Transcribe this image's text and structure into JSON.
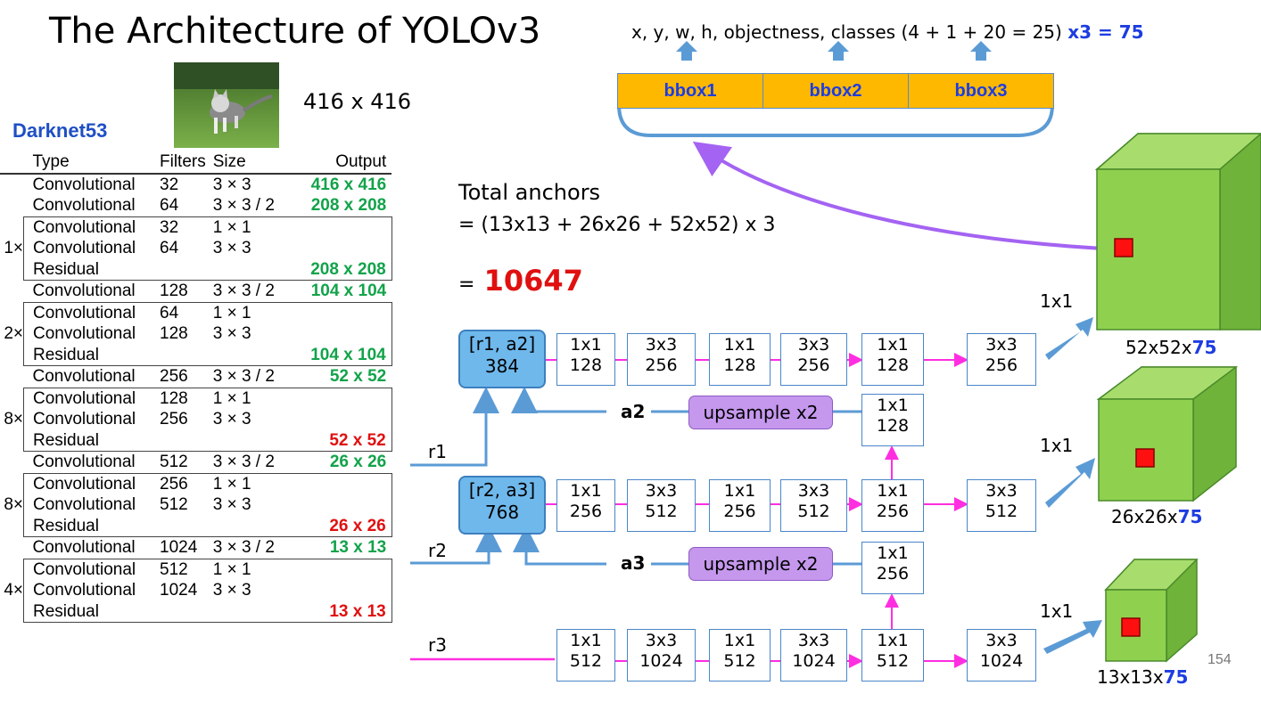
{
  "title": "The Architecture of YOLOv3",
  "input_size": "416 x 416",
  "network_name": "Darknet53",
  "table": {
    "headers": {
      "type": "Type",
      "filters": "Filters",
      "size": "Size",
      "output": "Output"
    },
    "rows": [
      {
        "mult": "",
        "type": "Convolutional",
        "filters": "32",
        "size": "3 × 3",
        "output": "416 x 416",
        "color": "green"
      },
      {
        "mult": "",
        "type": "Convolutional",
        "filters": "64",
        "size": "3 × 3 / 2",
        "output": "208 x 208",
        "color": "green"
      },
      {
        "mult": "",
        "type": "Convolutional",
        "filters": "32",
        "size": "1 × 1",
        "output": "",
        "color": ""
      },
      {
        "mult": "1×",
        "type": "Convolutional",
        "filters": "64",
        "size": "3 × 3",
        "output": "",
        "color": ""
      },
      {
        "mult": "",
        "type": "Residual",
        "filters": "",
        "size": "",
        "output": "208 x 208",
        "color": "green"
      },
      {
        "mult": "",
        "type": "Convolutional",
        "filters": "128",
        "size": "3 × 3 / 2",
        "output": "104 x 104",
        "color": "green"
      },
      {
        "mult": "",
        "type": "Convolutional",
        "filters": "64",
        "size": "1 × 1",
        "output": "",
        "color": ""
      },
      {
        "mult": "2×",
        "type": "Convolutional",
        "filters": "128",
        "size": "3 × 3",
        "output": "",
        "color": ""
      },
      {
        "mult": "",
        "type": "Residual",
        "filters": "",
        "size": "",
        "output": "104 x 104",
        "color": "green"
      },
      {
        "mult": "",
        "type": "Convolutional",
        "filters": "256",
        "size": "3 × 3 / 2",
        "output": "52 x 52",
        "color": "green"
      },
      {
        "mult": "",
        "type": "Convolutional",
        "filters": "128",
        "size": "1 × 1",
        "output": "",
        "color": ""
      },
      {
        "mult": "8×",
        "type": "Convolutional",
        "filters": "256",
        "size": "3 × 3",
        "output": "",
        "color": ""
      },
      {
        "mult": "",
        "type": "Residual",
        "filters": "",
        "size": "",
        "output": "52 x 52",
        "color": "red"
      },
      {
        "mult": "",
        "type": "Convolutional",
        "filters": "512",
        "size": "3 × 3 / 2",
        "output": "26 x 26",
        "color": "green"
      },
      {
        "mult": "",
        "type": "Convolutional",
        "filters": "256",
        "size": "1 × 1",
        "output": "",
        "color": ""
      },
      {
        "mult": "8×",
        "type": "Convolutional",
        "filters": "512",
        "size": "3 × 3",
        "output": "",
        "color": ""
      },
      {
        "mult": "",
        "type": "Residual",
        "filters": "",
        "size": "",
        "output": "26 x 26",
        "color": "red"
      },
      {
        "mult": "",
        "type": "Convolutional",
        "filters": "1024",
        "size": "3 × 3 / 2",
        "output": "13 x 13",
        "color": "green"
      },
      {
        "mult": "",
        "type": "Convolutional",
        "filters": "512",
        "size": "1 × 1",
        "output": "",
        "color": ""
      },
      {
        "mult": "4×",
        "type": "Convolutional",
        "filters": "1024",
        "size": "3 × 3",
        "output": "",
        "color": ""
      },
      {
        "mult": "",
        "type": "Residual",
        "filters": "",
        "size": "",
        "output": "13 x 13",
        "color": "red"
      }
    ]
  },
  "attributes_text": "x, y, w, h, objectness, classes (4 + 1 + 20 = 25)",
  "attributes_mult": "x3 = 75",
  "bboxes": [
    "bbox1",
    "bbox2",
    "bbox3"
  ],
  "anchors": {
    "line1": "Total anchors",
    "line2": "= (13x13 + 26x26 + 52x52) x 3",
    "eq": "=",
    "total": "10647"
  },
  "routes": [
    {
      "top": "[r1, a2]",
      "bottom": "384"
    },
    {
      "top": "[r2, a3]",
      "bottom": "768"
    }
  ],
  "row1_convs": [
    [
      "1x1",
      "128"
    ],
    [
      "3x3",
      "256"
    ],
    [
      "1x1",
      "128"
    ],
    [
      "3x3",
      "256"
    ],
    [
      "1x1",
      "128"
    ],
    [
      "3x3",
      "256"
    ]
  ],
  "row2_convs": [
    [
      "1x1",
      "256"
    ],
    [
      "3x3",
      "512"
    ],
    [
      "1x1",
      "256"
    ],
    [
      "3x3",
      "512"
    ],
    [
      "1x1",
      "256"
    ],
    [
      "3x3",
      "512"
    ]
  ],
  "row3_convs": [
    [
      "1x1",
      "512"
    ],
    [
      "3x3",
      "1024"
    ],
    [
      "1x1",
      "512"
    ],
    [
      "3x3",
      "1024"
    ],
    [
      "1x1",
      "512"
    ],
    [
      "3x3",
      "1024"
    ]
  ],
  "upsample_convs": [
    [
      "1x1",
      "128"
    ],
    [
      "1x1",
      "256"
    ]
  ],
  "upsample_label": "upsample x2",
  "a_labels": [
    "a2",
    "a3"
  ],
  "r_labels": [
    "r1",
    "r2",
    "r3"
  ],
  "head_label": "1x1",
  "outputs": [
    {
      "size": "52x52x",
      "ch": "75"
    },
    {
      "size": "26x26x",
      "ch": "75"
    },
    {
      "size": "13x13x",
      "ch": "75"
    }
  ],
  "page_number": "154",
  "colors": {
    "green": "#12a34a",
    "red": "#e01010",
    "blue": "#1d3de0",
    "magenta": "#ff2ee0",
    "cube": "#8fd14f"
  }
}
